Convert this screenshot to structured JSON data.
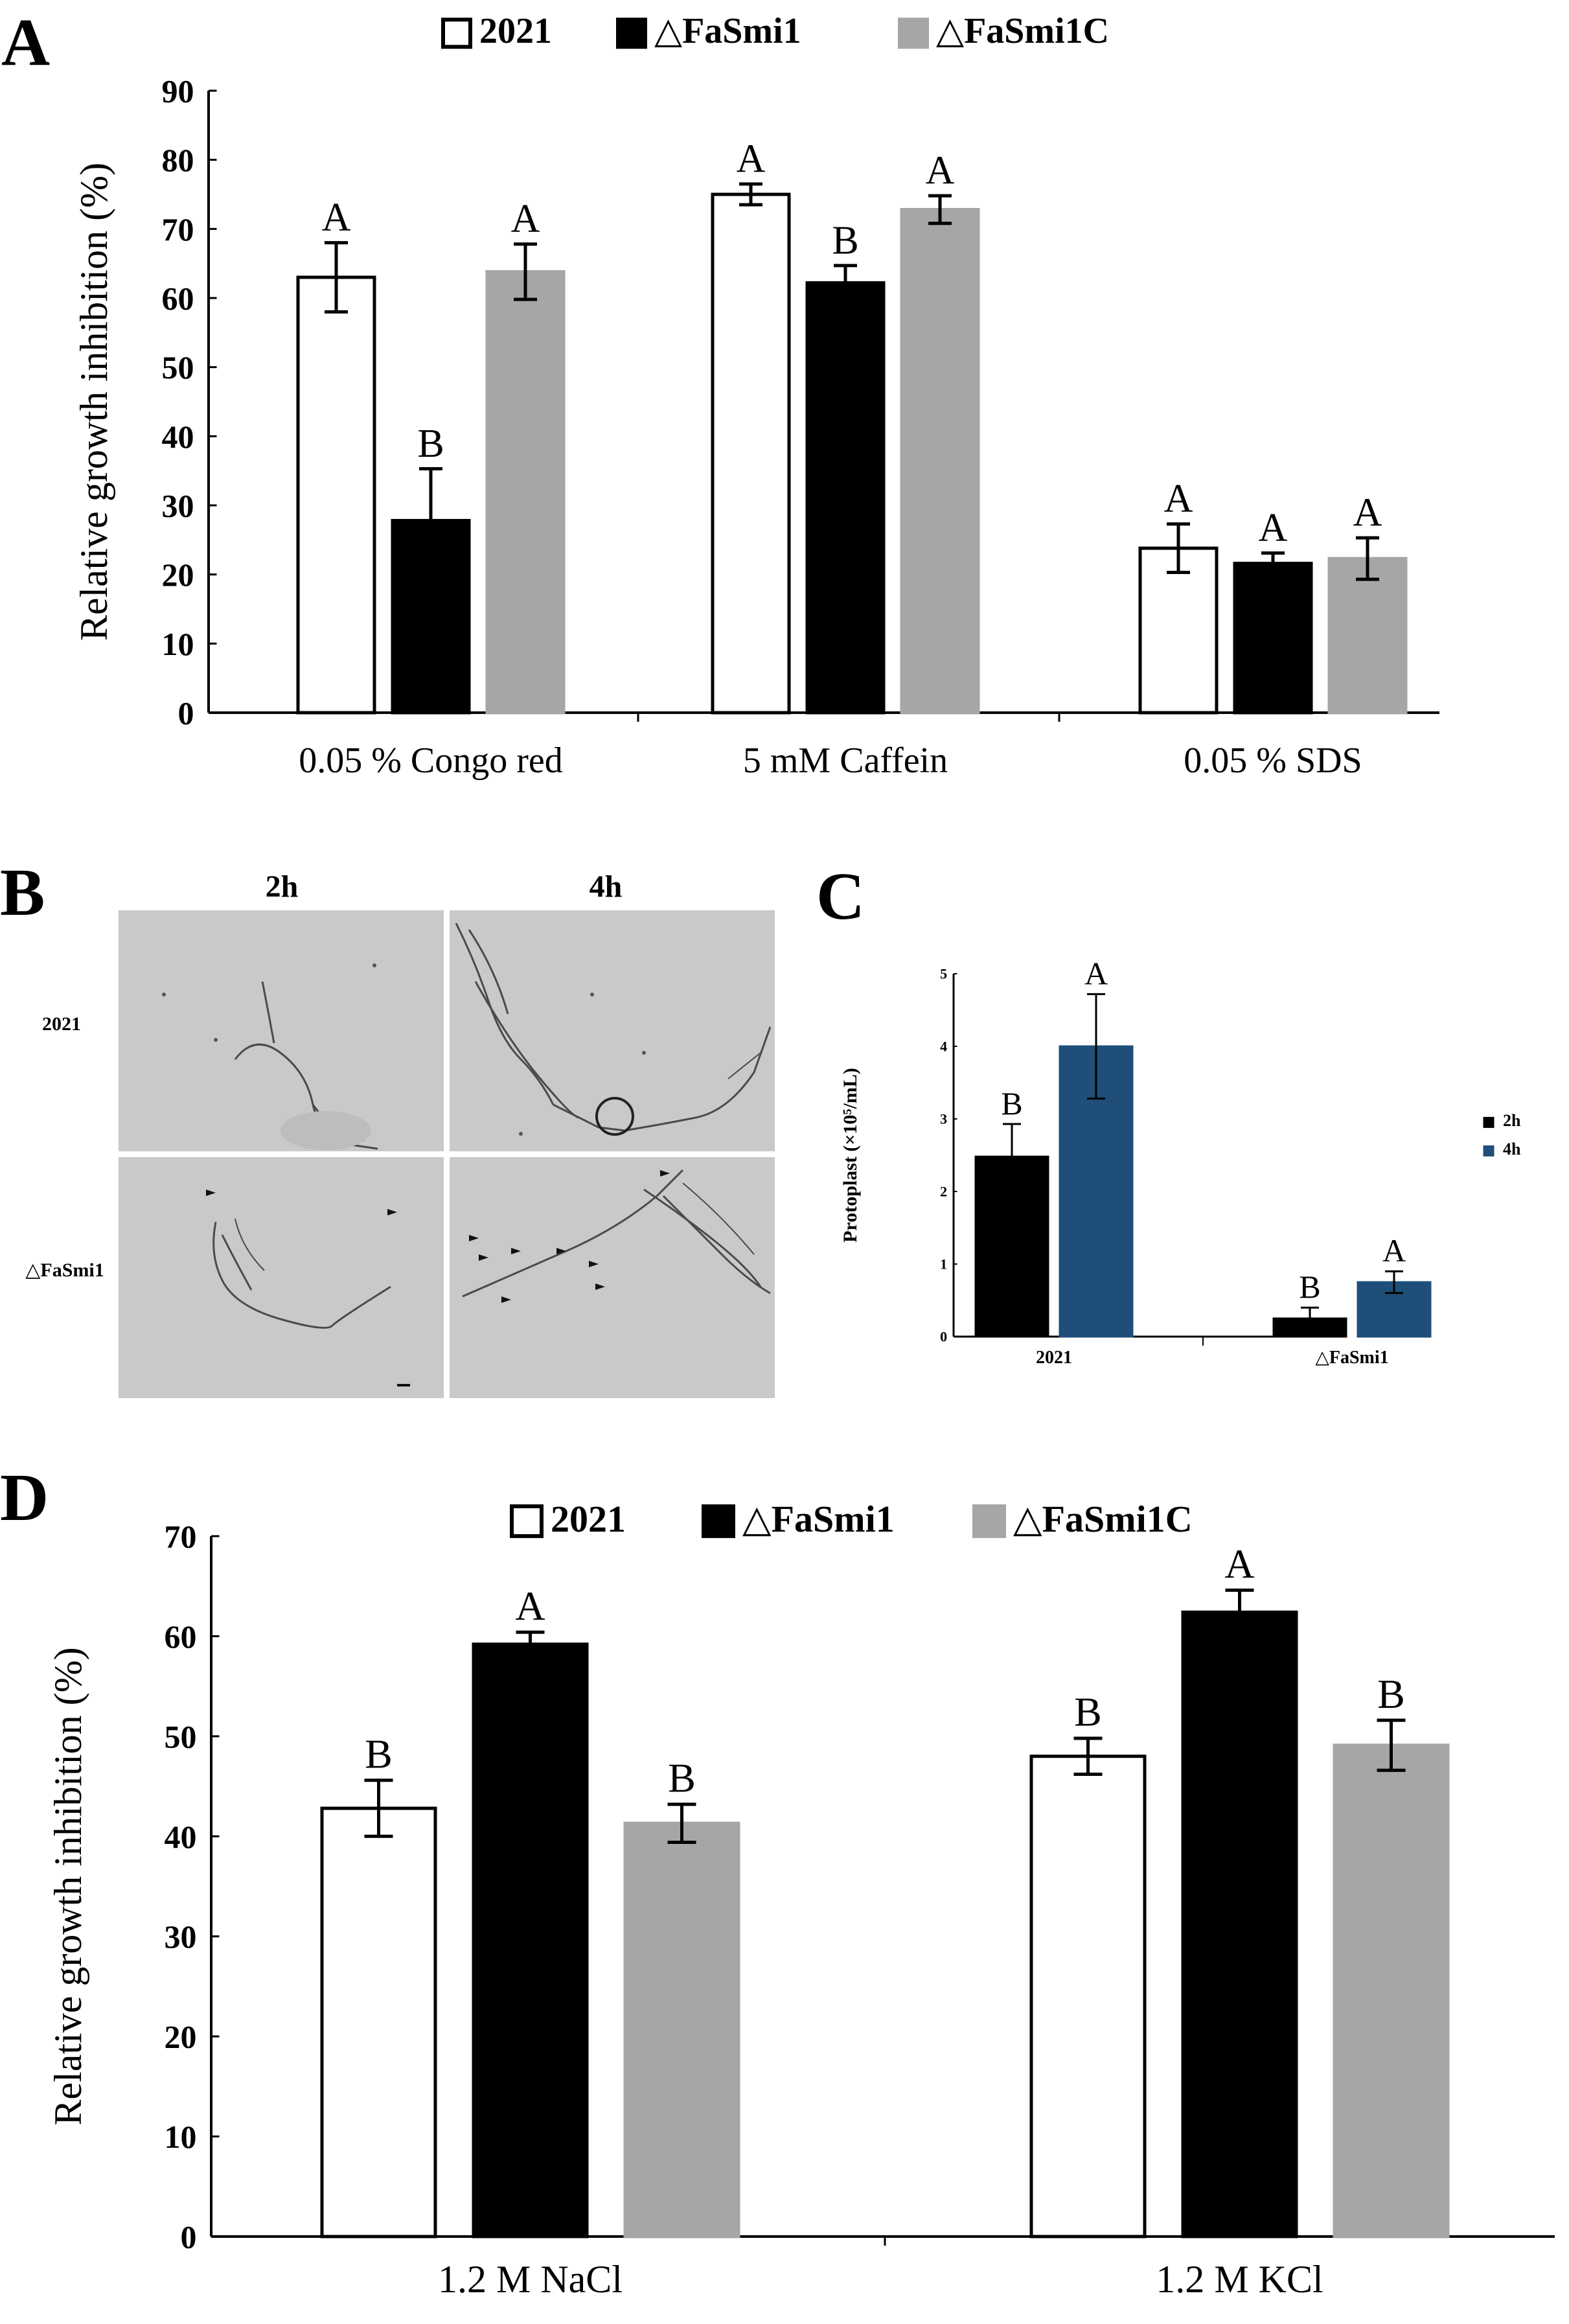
{
  "panel_labels": {
    "a": "A",
    "b": "B",
    "c": "C",
    "d": "D"
  },
  "colors": {
    "c2021": "#ffffff",
    "cFaSmi1": "#000000",
    "cFaSmi1C": "#a6a6a6",
    "c2h": "#000000",
    "c4h": "#1f4e79",
    "micro_bg": "#c9c9c9",
    "hypha": "#4a4a4a"
  },
  "micrographs": {
    "col_labels": [
      "2h",
      "4h"
    ],
    "row_labels": [
      "2021",
      "△FaSmi1"
    ],
    "marker_icons": [
      "arrowhead-icon",
      "scale-bar-icon",
      "circle-highlight-icon"
    ]
  },
  "chart_data": [
    {
      "id": "A",
      "type": "bar",
      "ylabel": "Relative growth inhibition (%)",
      "ylim": [
        0,
        90
      ],
      "yticks": [
        0,
        10,
        20,
        30,
        40,
        50,
        60,
        70,
        80,
        90
      ],
      "categories": [
        "0.05 % Congo red",
        "5 mM Caffein",
        "0.05 % SDS"
      ],
      "legend": {
        "placement": "top",
        "entries": [
          "2021",
          "△FaSmi1",
          "△FaSmi1C"
        ]
      },
      "series": [
        {
          "name": "2021",
          "values": [
            63,
            75,
            23.8
          ],
          "errors": [
            5,
            1.5,
            3.5
          ],
          "letters": [
            "A",
            "A",
            "A"
          ]
        },
        {
          "name": "△FaSmi1",
          "values": [
            27.8,
            62.2,
            21.6
          ],
          "errors": [
            7.5,
            2.5,
            1.5
          ],
          "letters": [
            "B",
            "B",
            "A"
          ]
        },
        {
          "name": "△FaSmi1C",
          "values": [
            63.8,
            72.8,
            22.3
          ],
          "errors": [
            4,
            2,
            3
          ],
          "letters": [
            "A",
            "A",
            "A"
          ]
        }
      ]
    },
    {
      "id": "C",
      "type": "bar",
      "ylabel": "Protoplast (×10⁵/mL)",
      "ylim": [
        0,
        5
      ],
      "yticks": [
        0,
        1,
        2,
        3,
        4,
        5
      ],
      "categories": [
        "2021",
        "△FaSmi1"
      ],
      "legend": {
        "placement": "right",
        "entries": [
          "2h",
          "4h"
        ]
      },
      "series": [
        {
          "name": "2h",
          "values": [
            2.48,
            0.25
          ],
          "errors": [
            0.45,
            0.15
          ],
          "letters": [
            "B",
            "B"
          ]
        },
        {
          "name": "4h",
          "values": [
            4.0,
            0.75
          ],
          "errors": [
            0.72,
            0.15
          ],
          "letters": [
            "A",
            "A"
          ]
        }
      ]
    },
    {
      "id": "D",
      "type": "bar",
      "ylabel": "Relative growth inhibition (%)",
      "ylim": [
        0,
        70
      ],
      "yticks": [
        0,
        10,
        20,
        30,
        40,
        50,
        60,
        70
      ],
      "categories": [
        "1.2 M NaCl",
        "1.2 M KCl"
      ],
      "legend": {
        "placement": "top",
        "entries": [
          "2021",
          "△FaSmi1",
          "△FaSmi1C"
        ]
      },
      "series": [
        {
          "name": "2021",
          "values": [
            42.8,
            48
          ],
          "errors": [
            2.8,
            1.8
          ],
          "letters": [
            "B",
            "B"
          ]
        },
        {
          "name": "△FaSmi1",
          "values": [
            59.2,
            62.4
          ],
          "errors": [
            1.2,
            2.2
          ],
          "letters": [
            "A",
            "A"
          ]
        },
        {
          "name": "△FaSmi1C",
          "values": [
            41.3,
            49.1
          ],
          "errors": [
            1.9,
            2.5
          ],
          "letters": [
            "B",
            "B"
          ]
        }
      ]
    }
  ]
}
